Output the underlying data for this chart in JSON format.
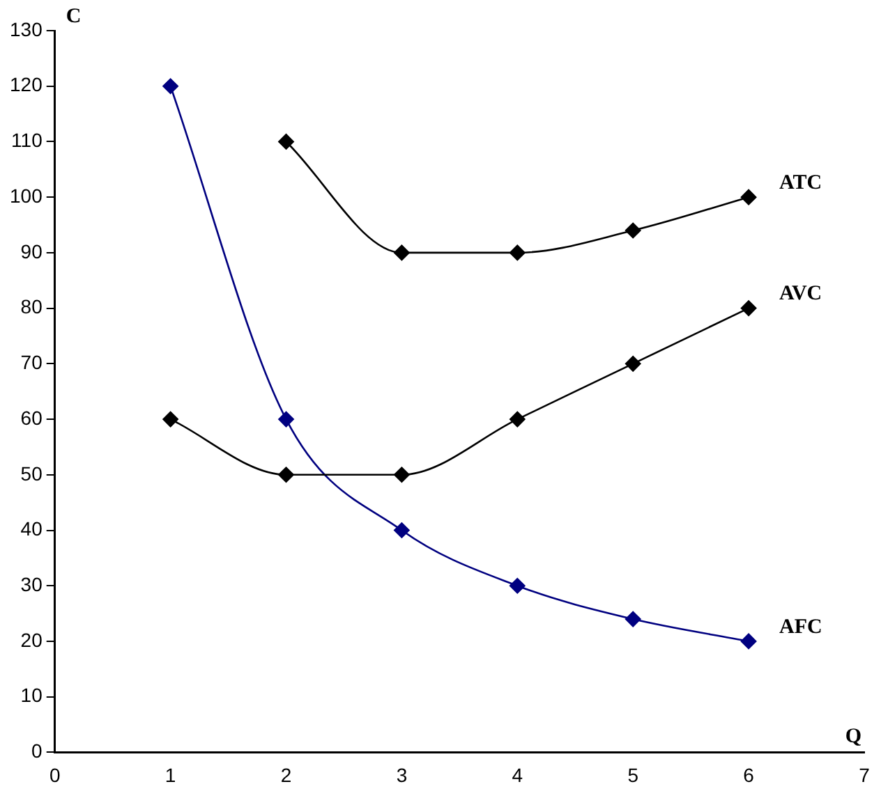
{
  "chart_data": {
    "type": "line",
    "xlabel": "Q",
    "ylabel": "C",
    "x": [
      1,
      2,
      3,
      4,
      5,
      6
    ],
    "series": [
      {
        "name": "ATC",
        "color": "#000000",
        "values": [
          null,
          110,
          90,
          90,
          94,
          100
        ]
      },
      {
        "name": "AVC",
        "color": "#000000",
        "values": [
          60,
          50,
          50,
          60,
          70,
          80
        ]
      },
      {
        "name": "AFC",
        "color": "#000080",
        "values": [
          120,
          60,
          40,
          30,
          24,
          20
        ]
      }
    ],
    "xlim": [
      0,
      7
    ],
    "xticks": [
      0,
      1,
      2,
      3,
      4,
      5,
      6,
      7
    ],
    "ylim": [
      0,
      130
    ],
    "yticks": [
      0,
      10,
      20,
      30,
      40,
      50,
      60,
      70,
      80,
      90,
      100,
      110,
      120,
      130
    ],
    "grid": false,
    "legend": false,
    "marker": "diamond",
    "line_style": "solid"
  }
}
